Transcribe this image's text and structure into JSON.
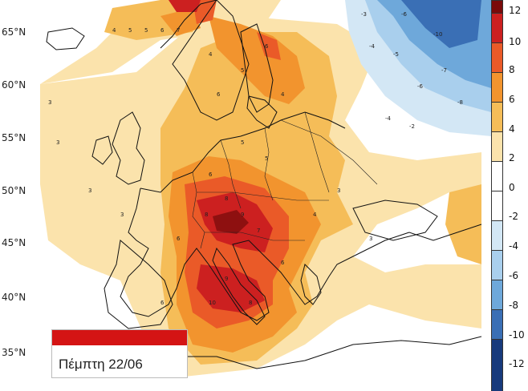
{
  "date_label": "Πέμπτη 22/06",
  "lat_labels": [
    "65°N",
    "60°N",
    "55°N",
    "50°N",
    "45°N",
    "40°N",
    "35°N"
  ],
  "legend": {
    "ticks": [
      "12",
      "10",
      "8",
      "6",
      "4",
      "2",
      "0",
      "-2",
      "-4",
      "-6",
      "-8",
      "-10",
      "-12"
    ],
    "colors": [
      "#7a0a0a",
      "#cc2020",
      "#ea5a28",
      "#f2942e",
      "#f5bd58",
      "#fbe3ac",
      "#ffffff",
      "#ffffff",
      "#d3e7f5",
      "#a9cfed",
      "#6ea8da",
      "#3a6fb5",
      "#173a7c"
    ]
  },
  "contour_labels": [
    "3",
    "4",
    "5",
    "6",
    "7",
    "8",
    "9",
    "10",
    "-2",
    "-3",
    "-4",
    "-5",
    "-6",
    "-7",
    "-8",
    "-10"
  ],
  "colors": {
    "ocean": "#ffffff",
    "coast": "#111111",
    "date_bar": "#d41414"
  }
}
